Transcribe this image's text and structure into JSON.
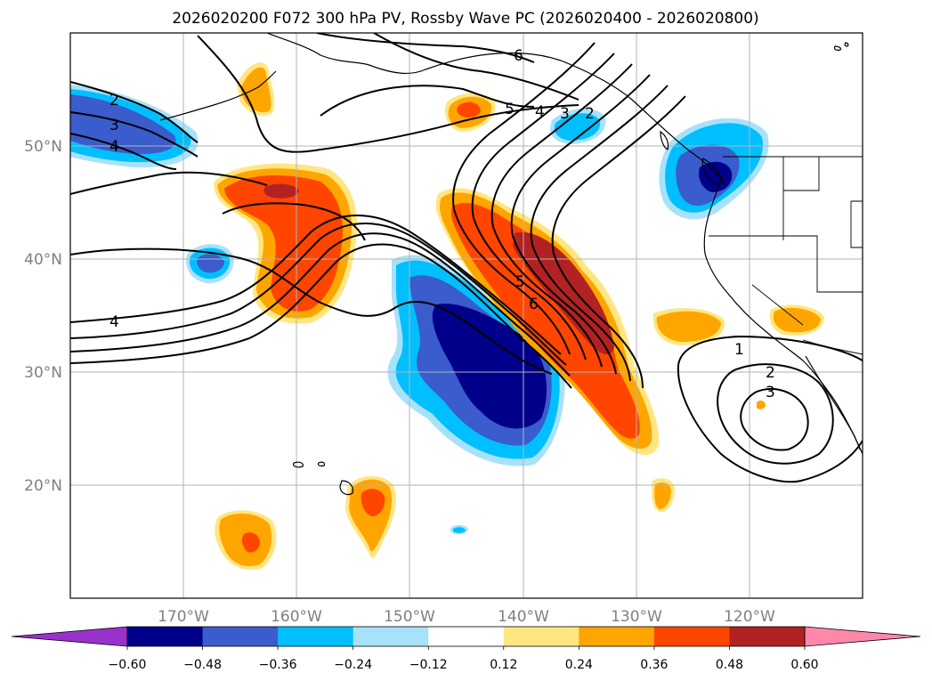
{
  "title": "2026020200 F072 300 hPa PV, Rossby Wave PC (2026020400 - 2026020800)",
  "map": {
    "extent": {
      "lon_min": -180,
      "lon_max": -110,
      "lat_min": 10,
      "lat_max": 60
    },
    "lon_ticks": [
      {
        "value": -170,
        "label": "170°W"
      },
      {
        "value": -160,
        "label": "160°W"
      },
      {
        "value": -150,
        "label": "150°W"
      },
      {
        "value": -140,
        "label": "140°W"
      },
      {
        "value": -130,
        "label": "130°W"
      },
      {
        "value": -120,
        "label": "120°W"
      }
    ],
    "lat_ticks": [
      {
        "value": 20,
        "label": "20°N"
      },
      {
        "value": 30,
        "label": "30°N"
      },
      {
        "value": 40,
        "label": "40°N"
      },
      {
        "value": 50,
        "label": "50°N"
      }
    ],
    "grid": true,
    "tick_color": "#808080"
  },
  "colorbar": {
    "levels": [
      "−0.60",
      "−0.48",
      "−0.36",
      "−0.24",
      "−0.12",
      "0.12",
      "0.24",
      "0.36",
      "0.48",
      "0.60"
    ],
    "colors": [
      "#9932cc",
      "#00008b",
      "#3a5ccc",
      "#00bfff",
      "#a8e2fa",
      "#ffffff",
      "#ffe680",
      "#ffa500",
      "#ff4500",
      "#b22222",
      "#ff88aa"
    ],
    "extend": "both"
  },
  "contour_labels": [
    "2",
    "3",
    "4",
    "4",
    "6",
    "5",
    "4",
    "3",
    "2",
    "5",
    "6",
    "1",
    "2",
    "3"
  ]
}
